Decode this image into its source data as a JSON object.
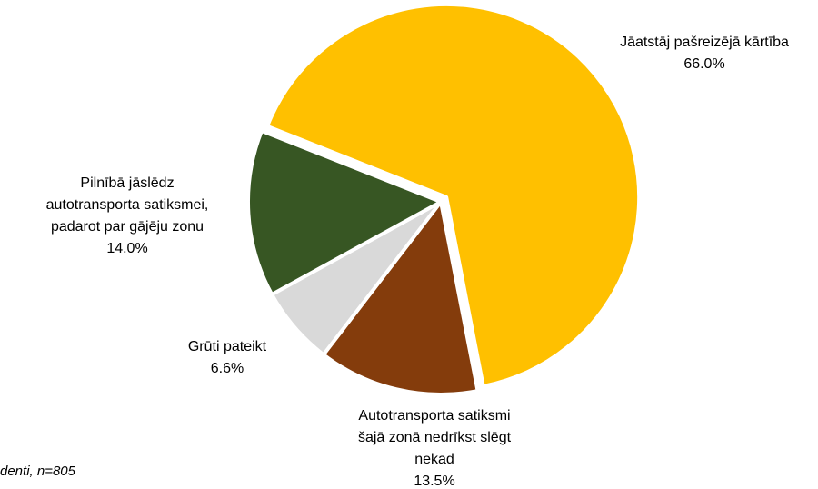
{
  "chart_data": {
    "type": "pie",
    "categories": [
      "Jāatstāj pašreizējā kārtība",
      "Autotransporta satiksmi šajā zonā nedrīkst slēgt nekad",
      "Grūti pateikt",
      "Pilnībā jāslēdz autotransporta satiksmei, padarot par gājēju zonu"
    ],
    "values": [
      66.0,
      13.5,
      6.6,
      14.0
    ],
    "value_labels": [
      "66.0%",
      "13.5%",
      "6.6%",
      "14.0%"
    ],
    "colors": [
      "#FFC000",
      "#843C0C",
      "#D9D9D9",
      "#375623"
    ],
    "note": "denti, n=805"
  }
}
